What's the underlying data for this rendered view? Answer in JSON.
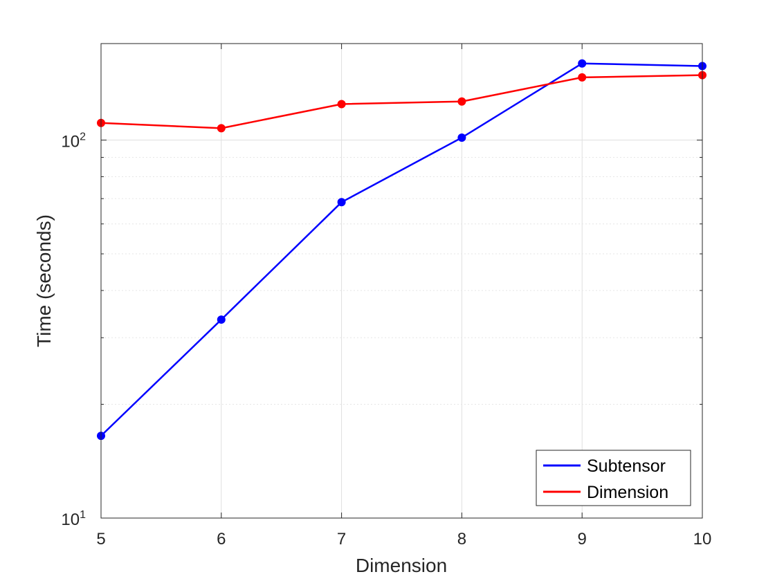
{
  "chart_data": {
    "type": "line",
    "xlabel": "Dimension",
    "ylabel": "Time (seconds)",
    "x": [
      5,
      6,
      7,
      8,
      9,
      10
    ],
    "xlim": [
      5,
      10
    ],
    "ylim": [
      10,
      180
    ],
    "yscale": "log",
    "x_ticks": [
      "5",
      "6",
      "7",
      "8",
      "9",
      "10"
    ],
    "y_ticks": [
      {
        "base": "10",
        "exp": "1",
        "value": 10
      },
      {
        "base": "10",
        "exp": "2",
        "value": 100
      }
    ],
    "grid": true,
    "legend_position": "bottom-right",
    "series": [
      {
        "name": "Subtensor",
        "color": "#0000ff",
        "values": [
          16.5,
          33.5,
          68.5,
          101.5,
          159.5,
          157
        ]
      },
      {
        "name": "Dimension",
        "color": "#ff0000",
        "values": [
          111,
          107.5,
          124.5,
          126.5,
          146.5,
          148.5
        ]
      }
    ]
  }
}
